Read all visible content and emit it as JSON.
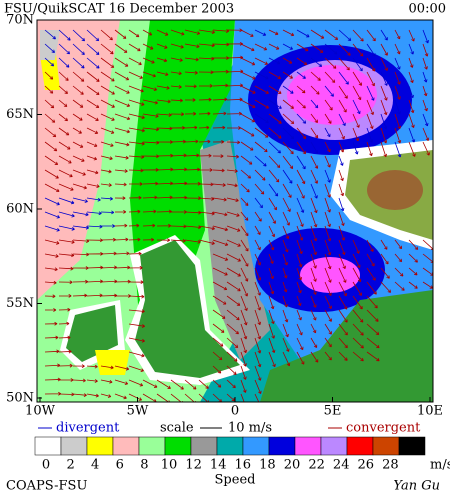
{
  "header": {
    "title": "FSU/QuikSCAT 16 December 2003",
    "time": "00:00"
  },
  "map": {
    "lat_labels": [
      "70N",
      "65N",
      "60N",
      "55N",
      "50N"
    ],
    "lon_labels": [
      "10W",
      "5W",
      "0",
      "5E",
      "10E"
    ]
  },
  "legend": {
    "divergent": "divergent",
    "scale": "scale",
    "scale_value": "10 m/s",
    "convergent": "convergent"
  },
  "colorbar": {
    "labels": [
      "0",
      "2",
      "4",
      "6",
      "8",
      "10",
      "12",
      "14",
      "16",
      "18",
      "20",
      "22",
      "24",
      "26",
      "28"
    ],
    "colors": [
      "#ffffff",
      "#cccccc",
      "#ffff00",
      "#ffbbbb",
      "#99ff99",
      "#00dd00",
      "#999999",
      "#00aaaa",
      "#3399ff",
      "#0000dd",
      "#ff55ff",
      "#bb88ff",
      "#ff0000",
      "#cc4400",
      "#000000"
    ],
    "unit": "m/s",
    "title": "Speed"
  },
  "footer": {
    "left": "COAPS-FSU",
    "right": "Yan Gu"
  }
}
